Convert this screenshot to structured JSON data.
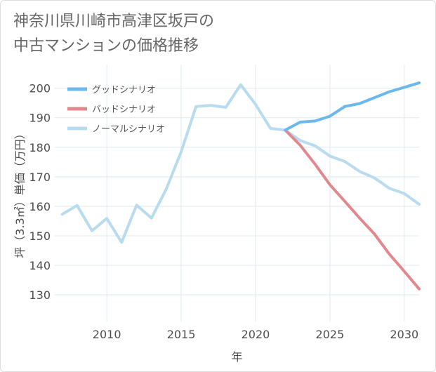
{
  "title": {
    "line1": "神奈川県川崎市高津区坂戸の",
    "line2": "中古マンションの価格推移"
  },
  "chart_data": {
    "type": "line",
    "title": "神奈川県川崎市高津区坂戸の中古マンションの価格推移",
    "xlabel": "年",
    "ylabel": "坪（3.3㎡）単価（万円）",
    "xlim": [
      2006.5,
      2031
    ],
    "ylim": [
      121,
      208
    ],
    "xticks": [
      2010,
      2015,
      2020,
      2025,
      2030
    ],
    "yticks": [
      130,
      140,
      150,
      160,
      170,
      180,
      190,
      200
    ],
    "grid": true,
    "legend_position": "top-left",
    "series": [
      {
        "name": "グッドシナリオ",
        "color": "#6cb8ee",
        "x": [
          2022,
          2023,
          2024,
          2025,
          2026,
          2027,
          2028,
          2029,
          2030,
          2031
        ],
        "values": [
          185.8,
          188.5,
          188.9,
          190.5,
          193.8,
          194.8,
          196.8,
          198.8,
          200.3,
          201.8
        ]
      },
      {
        "name": "バッドシナリオ",
        "color": "#e0888e",
        "x": [
          2022,
          2023,
          2024,
          2025,
          2026,
          2027,
          2028,
          2029,
          2030,
          2031
        ],
        "values": [
          185.8,
          180.7,
          174.3,
          167.3,
          161.7,
          156.0,
          150.6,
          143.8,
          138.0,
          132.0
        ]
      },
      {
        "name": "ノーマルシナリオ",
        "color": "#b8dcee",
        "x": [
          2007,
          2008,
          2009,
          2010,
          2011,
          2012,
          2013,
          2014,
          2015,
          2016,
          2017,
          2018,
          2019,
          2020,
          2021,
          2022,
          2023,
          2024,
          2025,
          2026,
          2027,
          2028,
          2029,
          2030,
          2031
        ],
        "values": [
          157.3,
          160.3,
          151.7,
          155.9,
          147.8,
          160.4,
          156.0,
          165.9,
          178.5,
          193.8,
          194.2,
          193.5,
          201.2,
          194.5,
          186.4,
          185.8,
          182.3,
          180.5,
          177.0,
          175.2,
          171.8,
          169.6,
          166.1,
          164.3,
          160.7
        ]
      }
    ]
  }
}
